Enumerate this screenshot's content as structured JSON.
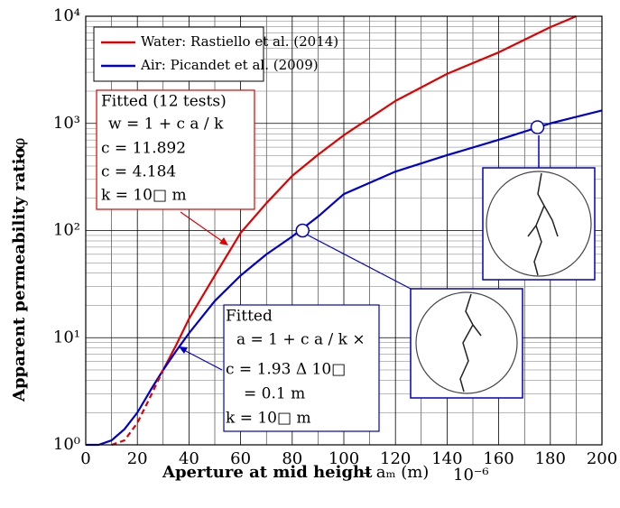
{
  "chart_data": {
    "type": "line",
    "ylabel": "Apparent permeability ratio",
    "ylabel_suffix": "– φ",
    "xlabel": "Aperture at mid height",
    "xlabel_suffix": "– aₘ (m)",
    "x_multiplier": "10⁻⁶",
    "x": [
      0,
      5,
      10,
      15,
      20,
      25,
      30,
      35,
      40,
      50,
      60,
      70,
      80,
      90,
      100,
      120,
      140,
      160,
      180,
      190,
      200
    ],
    "series": [
      {
        "name": "Water: Rastiello et al. (2014)",
        "color": "#e00000",
        "values": [
          null,
          null,
          null,
          null,
          null,
          null,
          5,
          8.5,
          15,
          38,
          95,
          180,
          324,
          510,
          776,
          1620,
          2900,
          4600,
          7900,
          10000,
          null
        ]
      },
      {
        "name": "Air: Picandet et al. (2009)",
        "color": "#0000cc",
        "values": [
          1,
          1,
          1.1,
          1.4,
          2,
          3.2,
          5,
          7.5,
          11,
          22,
          38,
          60,
          88,
          135,
          219,
          355,
          505,
          703,
          1000,
          1150,
          1320
        ]
      },
      {
        "color": "#e00000",
        "dashed": true,
        "values": [
          null,
          null,
          1,
          1.1,
          1.6,
          2.8,
          5,
          null,
          null,
          null,
          null,
          null,
          null,
          null,
          null,
          null,
          null,
          null,
          null,
          null,
          null
        ]
      }
    ],
    "markers": [
      {
        "x": 84,
        "y": 100
      },
      {
        "x": 175,
        "y": 920
      }
    ],
    "xlim": [
      0,
      200
    ],
    "xticks": [
      0,
      20,
      40,
      60,
      80,
      100,
      120,
      140,
      160,
      180,
      200
    ],
    "ylim": [
      1,
      10000
    ],
    "log_y": true,
    "yticks": [
      {
        "value": 1,
        "label": "10⁰"
      },
      {
        "value": 10,
        "label": "10¹"
      },
      {
        "value": 100,
        "label": "10²"
      },
      {
        "value": 1000,
        "label": "10³"
      },
      {
        "value": 10000,
        "label": "10⁴"
      }
    ],
    "grid": true,
    "legend": "upper left",
    "annotations": [
      {
        "color": "#e00000",
        "lines": [
          "Fitted (12 tests)",
          "w = 1 + c a / k",
          "c = 11.892",
          "c = 4.184",
          "k = 10□ m"
        ]
      },
      {
        "color": "#0000cc",
        "lines": [
          "Fitted",
          "a = 1 + c a / k ×",
          "c = 1.93 Δ 10□",
          "= 0.1 m",
          "k = 10□ m"
        ]
      }
    ]
  }
}
